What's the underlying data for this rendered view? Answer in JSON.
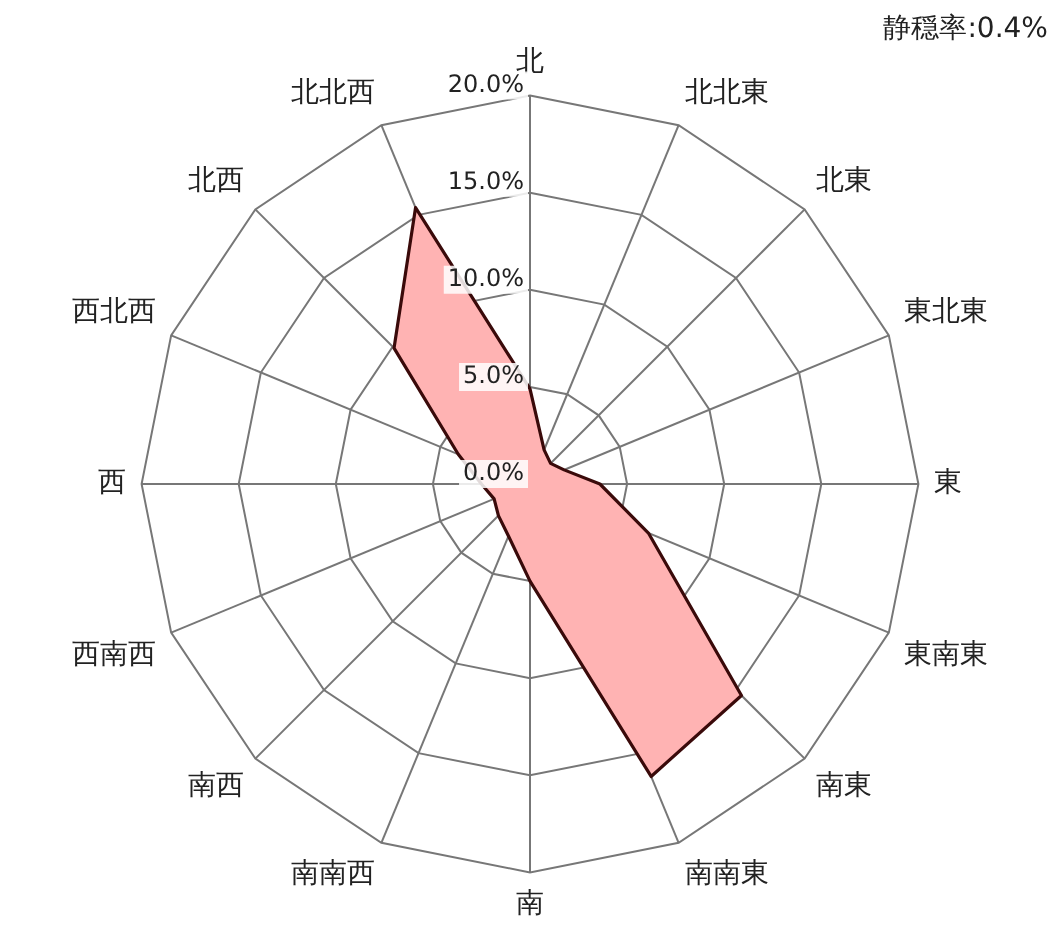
{
  "chart_data": {
    "type": "radar",
    "categories": [
      "北",
      "北北東",
      "北東",
      "東北東",
      "東",
      "東南東",
      "南東",
      "南南東",
      "南",
      "南南西",
      "南西",
      "西南西",
      "西",
      "西北西",
      "北西",
      "北北西"
    ],
    "series": [
      {
        "color": "#ffb3b3",
        "values": [
          4.9,
          1.9,
          1.5,
          1.9,
          3.6,
          6.6,
          15.4,
          16.3,
          5.0,
          2.9,
          2.3,
          2.0,
          2.5,
          4.0,
          9.9,
          15.4
        ]
      }
    ],
    "ylim": [
      0,
      20
    ],
    "yticks": [
      {
        "value": 0,
        "label": "0.0%"
      },
      {
        "value": 5,
        "label": "5.0%"
      },
      {
        "value": 10,
        "label": "10.0%"
      },
      {
        "value": 15,
        "label": "15.0%"
      },
      {
        "value": 20,
        "label": "20.0%"
      }
    ],
    "grid": true,
    "legend": false,
    "marker": "none",
    "annotations": [
      "静穏率:0.4%"
    ]
  }
}
